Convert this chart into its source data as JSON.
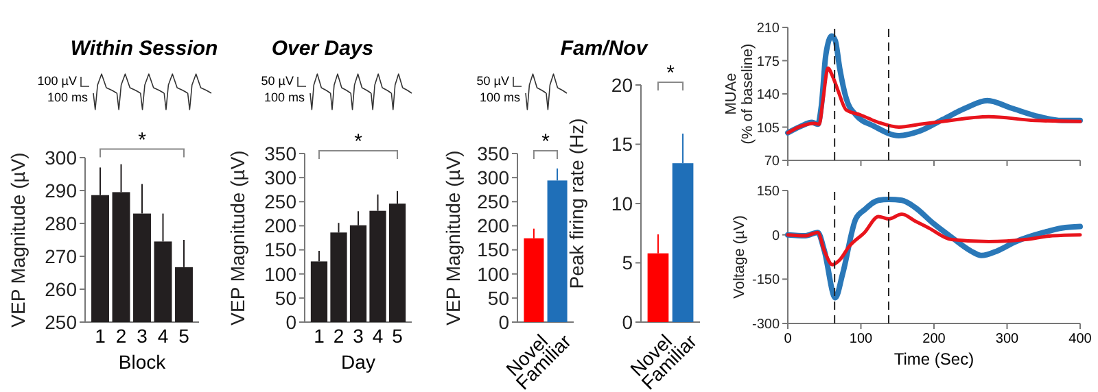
{
  "chart_data": [
    {
      "type": "bar",
      "title": "Within Session",
      "ylabel": "VEP Magnitude (µV)",
      "xlabel": "Block",
      "categories": [
        "1",
        "2",
        "3",
        "4",
        "5"
      ],
      "values": [
        288.6,
        289.5,
        283,
        274.5,
        266.7
      ],
      "errors": [
        [
          288.6,
          297
        ],
        [
          289.5,
          298
        ],
        [
          283,
          292
        ],
        [
          274.5,
          283
        ],
        [
          266.7,
          275
        ]
      ],
      "color": "#231f20",
      "ylim": [
        250,
        300
      ],
      "yticks": [
        250,
        260,
        270,
        280,
        290,
        300
      ],
      "annotations": [
        "100 µV",
        "100 ms",
        "*"
      ]
    },
    {
      "type": "bar",
      "title": "Over Days",
      "ylabel": "VEP Magnitude (µV)",
      "xlabel": "Day",
      "categories": [
        "1",
        "2",
        "3",
        "4",
        "5"
      ],
      "values": [
        126,
        186,
        201,
        231,
        246
      ],
      "errors": [
        [
          126,
          148
        ],
        [
          186,
          206
        ],
        [
          201,
          230
        ],
        [
          231,
          265
        ],
        [
          246,
          272
        ]
      ],
      "color": "#231f20",
      "ylim": [
        0,
        350
      ],
      "yticks": [
        0,
        50,
        100,
        150,
        200,
        250,
        300,
        350
      ],
      "annotations": [
        "50 µV",
        "100 ms",
        "*"
      ]
    },
    {
      "type": "bar",
      "title": "Fam/Nov",
      "ylabel": "VEP Magnitude (µV)",
      "categories": [
        "Novel",
        "Familiar"
      ],
      "values": [
        174,
        294
      ],
      "errors": [
        [
          174,
          194
        ],
        [
          294,
          319
        ]
      ],
      "colors": [
        "#ff0000",
        "#1f6fb8"
      ],
      "ylim": [
        0,
        350
      ],
      "yticks": [
        0,
        50,
        100,
        150,
        200,
        250,
        300,
        350
      ],
      "annotations": [
        "50 µV",
        "100 ms",
        "*"
      ]
    },
    {
      "type": "bar",
      "ylabel": "Peak firing rate (Hz)",
      "categories": [
        "Novel",
        "Familiar"
      ],
      "values": [
        5.8,
        13.4
      ],
      "errors": [
        [
          5.8,
          7.4
        ],
        [
          13.4,
          15.9
        ]
      ],
      "colors": [
        "#ff0000",
        "#1f6fb8"
      ],
      "ylim": [
        0,
        20
      ],
      "yticks": [
        0,
        5,
        10,
        15,
        20
      ],
      "annotations": [
        "*"
      ]
    },
    {
      "type": "line",
      "ylabel": "MUAe\n(% of baseline)",
      "xlim": [
        0,
        400
      ],
      "xticks": [
        0,
        100,
        200,
        300,
        400
      ],
      "ylim": [
        70,
        210
      ],
      "yticks": [
        70,
        105,
        140,
        175,
        210
      ],
      "tick_labels": "y",
      "ref_lines": [
        {
          "axis": "x",
          "value": 64,
          "line_style": "dashed"
        },
        {
          "axis": "x",
          "value": 138,
          "line_style": "dashed"
        }
      ],
      "series": [
        {
          "color": "#2a78b8",
          "x": [
            0,
            18,
            33,
            41,
            46,
            52,
            60,
            65,
            71,
            80,
            93,
            118,
            152,
            181,
            212,
            243,
            273,
            306,
            344,
            375,
            400
          ],
          "values": [
            99,
            106,
            110,
            108,
            128,
            181,
            201,
            196,
            167,
            135,
            118,
            106,
            96,
            101,
            113,
            125,
            133,
            125,
            116,
            112,
            112
          ]
        },
        {
          "color": "#e8141c",
          "x": [
            0,
            18,
            36,
            43,
            48,
            55,
            61,
            68,
            80,
            99,
            124,
            152,
            181,
            212,
            275,
            338,
            400
          ],
          "values": [
            99,
            106,
            109,
            108,
            133,
            167,
            159,
            145,
            123,
            118,
            110,
            105,
            108,
            111,
            116,
            112,
            111
          ]
        }
      ]
    },
    {
      "type": "line",
      "ylabel": "Voltage (µV)",
      "xlabel": "Time (Sec)",
      "xlim": [
        0,
        400
      ],
      "xticks": [
        0,
        100,
        200,
        300,
        400
      ],
      "ylim": [
        -300,
        150
      ],
      "yticks": [
        -300,
        -150,
        0,
        150
      ],
      "ref_lines": [
        {
          "axis": "x",
          "value": 64,
          "line_style": "dashed"
        },
        {
          "axis": "x",
          "value": 138,
          "line_style": "dashed"
        }
      ],
      "series": [
        {
          "color": "#2a78b8",
          "x": [
            0,
            24,
            41,
            50,
            65,
            75,
            93,
            105,
            124,
            138,
            156,
            174,
            199,
            224,
            250,
            265,
            287,
            312,
            350,
            375,
            400
          ],
          "values": [
            0,
            -3,
            8,
            -54,
            -213,
            -132,
            54,
            85,
            117,
            120,
            117,
            93,
            39,
            -8,
            -54,
            -70,
            -54,
            -23,
            8,
            23,
            28
          ]
        },
        {
          "color": "#e8141c",
          "x": [
            0,
            24,
            41,
            50,
            61,
            71,
            84,
            105,
            124,
            138,
            156,
            174,
            193,
            224,
            275,
            325,
            362,
            400
          ],
          "values": [
            0,
            -3,
            8,
            -54,
            -101,
            -85,
            -39,
            8,
            62,
            54,
            70,
            47,
            23,
            -16,
            -23,
            -16,
            -3,
            0
          ]
        }
      ]
    }
  ]
}
